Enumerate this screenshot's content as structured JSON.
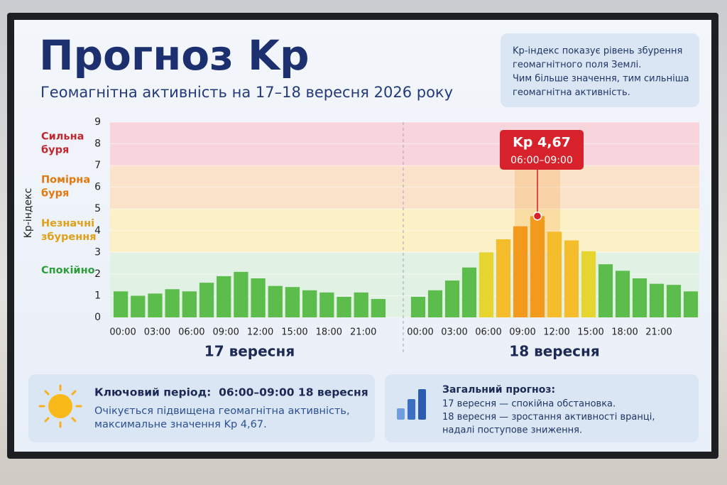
{
  "header": {
    "title": "Прогноз Kp",
    "subtitle": "Геомагнітна активність на 17–18 вересня 2026 року"
  },
  "info": {
    "lines": [
      "Kp-індекс показує рівень збурення",
      "геомагнітного поля Землі.",
      "Чим більше значення, тим сильніша",
      "геомагнітна активність."
    ]
  },
  "chart_data": {
    "type": "bar",
    "ylabel": "Kp-індекс",
    "ylim": [
      0,
      9
    ],
    "yticks": [
      0,
      1,
      2,
      3,
      4,
      5,
      6,
      7,
      8,
      9
    ],
    "bands": [
      {
        "label": "Сильна буря",
        "from": 7,
        "to": 9,
        "color": "#f8d5dc",
        "text_color": "#c0262d"
      },
      {
        "label": "Помірна буря",
        "from": 5,
        "to": 7,
        "color": "#fbe2cb",
        "text_color": "#e2780e"
      },
      {
        "label": "Незначні збурення",
        "from": 3,
        "to": 5,
        "color": "#fbf0c6",
        "text_color": "#e0a018"
      },
      {
        "label": "Спокійно",
        "from": 0,
        "to": 3,
        "color": "#e1f1e4",
        "text_color": "#2e9e3c"
      }
    ],
    "color_scale": [
      {
        "min": 0,
        "color": "#5dbd4c"
      },
      {
        "min": 3,
        "color": "#e6d52e"
      },
      {
        "min": 3.5,
        "color": "#f5bd2c"
      },
      {
        "min": 4,
        "color": "#f39a1d"
      }
    ],
    "days": [
      {
        "label": "17 вересня",
        "categories": [
          "00:00",
          null,
          "03:00",
          null,
          "06:00",
          null,
          "09:00",
          null,
          "12:00",
          null,
          "15:00",
          null,
          "18:00",
          null,
          "21:00",
          null
        ],
        "values": [
          1.2,
          1.0,
          1.1,
          1.3,
          1.2,
          1.6,
          1.9,
          2.1,
          1.8,
          1.45,
          1.4,
          1.25,
          1.15,
          0.95,
          1.15,
          0.85
        ]
      },
      {
        "label": "18 вересня",
        "categories": [
          "00:00",
          null,
          "03:00",
          null,
          "06:00",
          null,
          "09:00",
          null,
          "12:00",
          null,
          "15:00",
          null,
          "18:00",
          null,
          "21:00",
          null,
          null
        ],
        "values": [
          0.95,
          1.25,
          1.7,
          2.3,
          3.0,
          3.6,
          4.2,
          4.67,
          3.95,
          3.55,
          3.05,
          2.45,
          2.15,
          1.8,
          1.55,
          1.5,
          1.2
        ]
      }
    ],
    "annotation": {
      "title": "Kp 4,67",
      "subtitle": "06:00–09:00"
    }
  },
  "cards": [
    {
      "title": "Ключовий період:  06:00–09:00 18 вересня",
      "lines": [
        "Очікується підвищена геомагнітна активність,",
        "максимальне значення Kp 4,67."
      ]
    },
    {
      "title": "Загальний прогноз:",
      "lines": [
        "17 вересня — спокійна обстановка.",
        "18 вересня — зростання активності вранці,",
        "надалі поступове зниження."
      ]
    }
  ]
}
